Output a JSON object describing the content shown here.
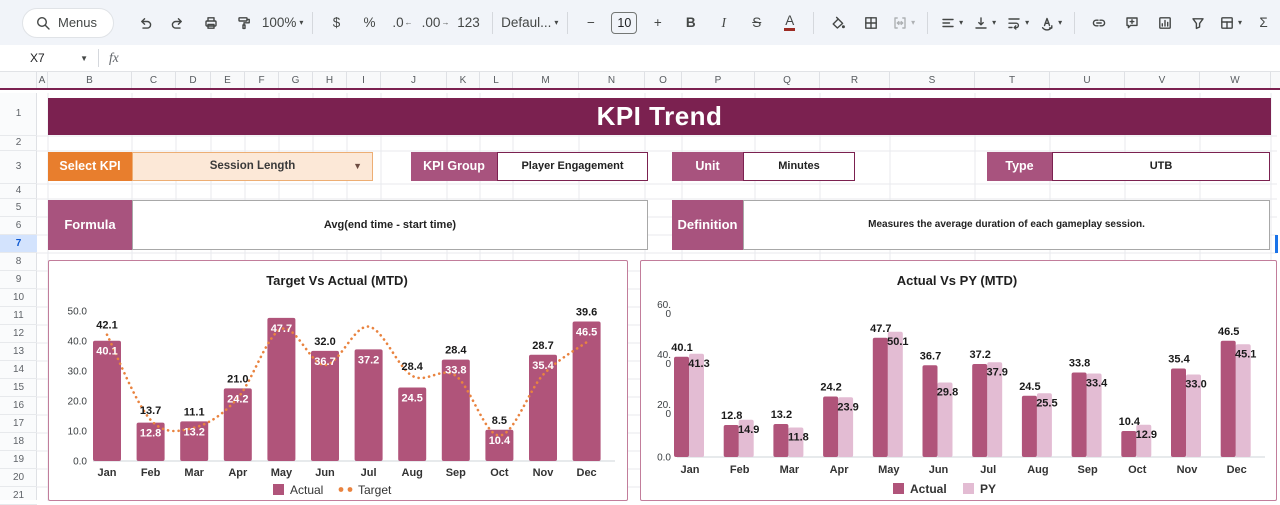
{
  "colors": {
    "banner": "#7b2150",
    "orange": "#e87e2d",
    "mauve_label": "#a8537e",
    "actual_bar": "#b0547a",
    "py_bar": "#e3bcd3",
    "target_line": "#e9833f",
    "chart_border": "#c27d9b",
    "selection_blue": "#1a73e8",
    "row_highlight": "#d3e3fd"
  },
  "toolbar": {
    "items": [
      {
        "name": "menus-button",
        "kind": "pill",
        "icon": "search",
        "label": "Menus"
      },
      {
        "name": "undo-button",
        "kind": "icon",
        "icon": "undo"
      },
      {
        "name": "redo-button",
        "kind": "icon",
        "icon": "redo"
      },
      {
        "name": "print-button",
        "kind": "icon",
        "icon": "print"
      },
      {
        "name": "paint-format-button",
        "kind": "icon",
        "icon": "paint"
      },
      {
        "name": "zoom-select",
        "kind": "textcaret",
        "label": "100%"
      },
      {
        "kind": "sep"
      },
      {
        "name": "format-currency-button",
        "kind": "text",
        "label": "$"
      },
      {
        "name": "format-percent-button",
        "kind": "text",
        "label": "%"
      },
      {
        "name": "decrease-decimals-button",
        "kind": "text",
        "label": ".0",
        "arrow": "←"
      },
      {
        "name": "increase-decimals-button",
        "kind": "text",
        "label": ".00",
        "arrow": "→"
      },
      {
        "name": "more-formats-button",
        "kind": "text",
        "label": "123"
      },
      {
        "kind": "sep"
      },
      {
        "name": "font-select",
        "kind": "textcaret",
        "label": "Defaul..."
      },
      {
        "kind": "sep"
      },
      {
        "name": "decrease-font-size-button",
        "kind": "text",
        "label": "−"
      },
      {
        "name": "font-size-input",
        "kind": "box",
        "label": "10"
      },
      {
        "name": "increase-font-size-button",
        "kind": "text",
        "label": "+"
      },
      {
        "name": "bold-button",
        "kind": "text",
        "label": "B",
        "style": "bold"
      },
      {
        "name": "italic-button",
        "kind": "text",
        "label": "I",
        "style": "italic"
      },
      {
        "name": "strikethrough-button",
        "kind": "text",
        "label": "S",
        "style": "strike"
      },
      {
        "name": "text-color-button",
        "kind": "text",
        "label": "A",
        "style": "underbar"
      },
      {
        "kind": "sep"
      },
      {
        "name": "fill-color-button",
        "kind": "icon",
        "icon": "bucket"
      },
      {
        "name": "borders-button",
        "kind": "icon",
        "icon": "borders"
      },
      {
        "name": "merge-cells-button",
        "kind": "iconcaret",
        "icon": "merge",
        "disabled": true
      },
      {
        "kind": "sep"
      },
      {
        "name": "horizontal-align-button",
        "kind": "iconcaret",
        "icon": "align"
      },
      {
        "name": "vertical-align-button",
        "kind": "iconcaret",
        "icon": "valign"
      },
      {
        "name": "text-wrap-button",
        "kind": "iconcaret",
        "icon": "wrap"
      },
      {
        "name": "text-rotation-button",
        "kind": "iconcaret",
        "icon": "rotate"
      },
      {
        "kind": "sep"
      },
      {
        "name": "insert-link-button",
        "kind": "icon",
        "icon": "link"
      },
      {
        "name": "insert-comment-button",
        "kind": "icon",
        "icon": "comment"
      },
      {
        "name": "insert-chart-button",
        "kind": "icon",
        "icon": "chart"
      },
      {
        "name": "create-filter-button",
        "kind": "icon",
        "icon": "filter"
      },
      {
        "name": "table-views-button",
        "kind": "iconcaret",
        "icon": "table"
      },
      {
        "name": "functions-button",
        "kind": "text",
        "label": "Σ"
      }
    ]
  },
  "formula_bar": {
    "name_box": "X7",
    "fx_label": "fx"
  },
  "grid": {
    "column_letters": [
      "A",
      "B",
      "C",
      "D",
      "E",
      "F",
      "G",
      "H",
      "I",
      "J",
      "K",
      "L",
      "M",
      "N",
      "O",
      "P",
      "Q",
      "R",
      "S",
      "T",
      "U",
      "V",
      "W"
    ],
    "row_numbers": [
      "1",
      "2",
      "3",
      "4",
      "5",
      "6",
      "7",
      "8",
      "9",
      "10",
      "11",
      "12",
      "13",
      "14",
      "15",
      "16",
      "17",
      "18",
      "19",
      "20",
      "21"
    ],
    "selected_row": "7"
  },
  "dashboard": {
    "title": "KPI Trend",
    "select_kpi_label": "Select KPI",
    "select_kpi_value": "Session Length",
    "kpi_group_label": "KPI Group",
    "kpi_group_value": "Player Engagement",
    "unit_label": "Unit",
    "unit_value": "Minutes",
    "type_label": "Type",
    "type_value": "UTB",
    "formula_label": "Formula",
    "formula_value": "Avg(end time - start time)",
    "definition_label": "Definition",
    "definition_value": "Measures the average duration of each gameplay session."
  },
  "chart_data": [
    {
      "type": "bar+line",
      "title": "Target Vs Actual (MTD)",
      "categories": [
        "Jan",
        "Feb",
        "Mar",
        "Apr",
        "May",
        "Jun",
        "Jul",
        "Aug",
        "Sep",
        "Oct",
        "Nov",
        "Dec"
      ],
      "series": [
        {
          "name": "Actual",
          "type": "bar",
          "color": "#b0547a",
          "label_color": "#ffffff",
          "values": [
            40.1,
            12.8,
            13.2,
            24.2,
            47.7,
            36.7,
            37.2,
            24.5,
            33.8,
            10.4,
            35.4,
            46.5
          ]
        },
        {
          "name": "Target",
          "type": "dotted-line",
          "color": "#e9833f",
          "label_color": "#1a1a1a",
          "values": [
            42.1,
            13.7,
            11.1,
            21.0,
            44.0,
            32.0,
            44.8,
            28.4,
            28.4,
            8.5,
            28.7,
            39.6
          ],
          "labels_visible": [
            1,
            1,
            1,
            1,
            0,
            1,
            0,
            1,
            1,
            1,
            1,
            1
          ]
        }
      ],
      "ylim": [
        0,
        50
      ],
      "yticks": [
        50,
        40,
        30,
        20,
        10,
        0
      ],
      "ytick_labels": [
        "50.0",
        "40.0",
        "30.0",
        "20.0",
        "10.0",
        "0.0"
      ],
      "legend_position": "bottom",
      "gridlines": false
    },
    {
      "type": "grouped-bar",
      "title": "Actual Vs PY (MTD)",
      "categories": [
        "Jan",
        "Feb",
        "Mar",
        "Apr",
        "May",
        "Jun",
        "Jul",
        "Aug",
        "Sep",
        "Oct",
        "Nov",
        "Dec"
      ],
      "series": [
        {
          "name": "Actual",
          "color": "#b0547a",
          "values": [
            40.1,
            12.8,
            13.2,
            24.2,
            47.7,
            36.7,
            37.2,
            24.5,
            33.8,
            10.4,
            35.4,
            46.5
          ]
        },
        {
          "name": "PY",
          "color": "#e3bcd3",
          "values": [
            41.3,
            14.9,
            11.8,
            23.9,
            50.1,
            29.8,
            37.9,
            25.5,
            33.4,
            12.9,
            33.0,
            45.1
          ]
        }
      ],
      "ylim": [
        0,
        60
      ],
      "yticks": [
        60,
        40,
        20,
        0
      ],
      "ytick_labels": [
        "60.0",
        "40.0",
        "20.0",
        "0.0"
      ],
      "legend_position": "bottom",
      "gridlines": false
    }
  ]
}
